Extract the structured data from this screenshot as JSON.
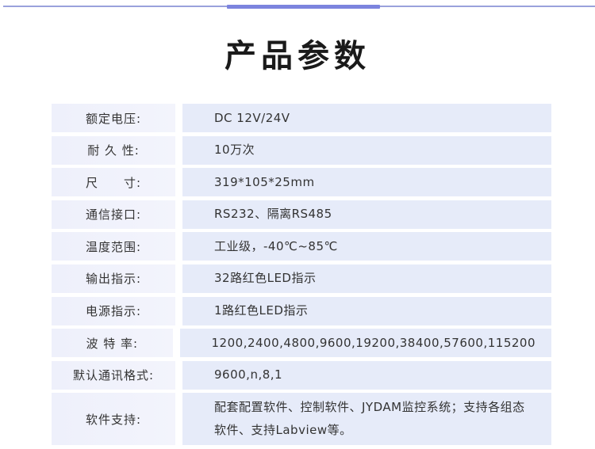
{
  "title": "产品参数",
  "colors": {
    "accent": "#7c84de",
    "label_bg": "#eef0fb",
    "value_bg": "#e6ebf9"
  },
  "rows": [
    {
      "label": "额定电压:",
      "value": "DC 12V/24V"
    },
    {
      "label": "耐 久 性:",
      "value": "10万次"
    },
    {
      "label": "尺　　寸:",
      "value": "319*105*25mm"
    },
    {
      "label": "通信接口:",
      "value": "RS232、隔离RS485"
    },
    {
      "label": "温度范围:",
      "value": "工业级，-40℃~85℃"
    },
    {
      "label": "输出指示:",
      "value": "32路红色LED指示"
    },
    {
      "label": "电源指示:",
      "value": "1路红色LED指示"
    },
    {
      "label": "波 特 率:",
      "value": "1200,2400,4800,9600,19200,38400,57600,115200"
    },
    {
      "label": "默认通讯格式:",
      "value": "9600,n,8,1"
    },
    {
      "label": "软件支持:",
      "value": "配套配置软件、控制软件、JYDAM监控系统；支持各组态软件、支持Labview等。"
    }
  ]
}
